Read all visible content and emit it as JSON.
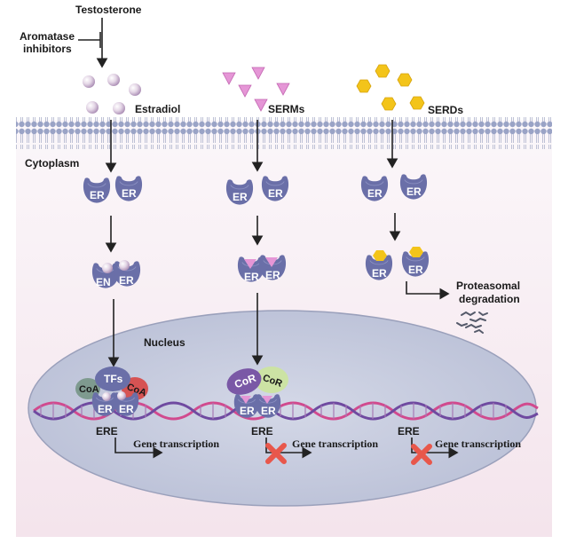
{
  "labels": {
    "testosterone": "Testosterone",
    "aromatase_line1": "Aromatase",
    "aromatase_line2": "inhibitors",
    "estradiol": "Estradiol",
    "serms": "SERMs",
    "serds": "SERDs",
    "cytoplasm": "Cytoplasm",
    "nucleus": "Nucleus",
    "er": "ER",
    "er_partial": "EN",
    "tfs": "TFs",
    "coa": "CoA",
    "cor": "CoR",
    "ere": "ERE",
    "gene_transcription": "Gene transcription",
    "proteasomal_line1": "Proteasomal",
    "proteasomal_line2": "degradation"
  },
  "colors": {
    "er_receptor": "#6a6fa8",
    "estradiol": "#d8c7dd",
    "serm": "#e596d6",
    "serd": "#f3c41a",
    "cor_purple": "#7a58a6",
    "cor_green": "#cce3a4",
    "coa_green": "#7e9a8f",
    "coa_red": "#d65353",
    "tfs": "#6a6fa8",
    "membrane": "#9aa3c6",
    "nucleus_fill": "#c9cedf",
    "dna_pink": "#d14a8e",
    "dna_purple": "#6f4aa0",
    "block_x": "#e8574b"
  },
  "icons": {
    "block_mark": "red-x-icon",
    "degraded_fragments": "protein-fragments-icon"
  }
}
